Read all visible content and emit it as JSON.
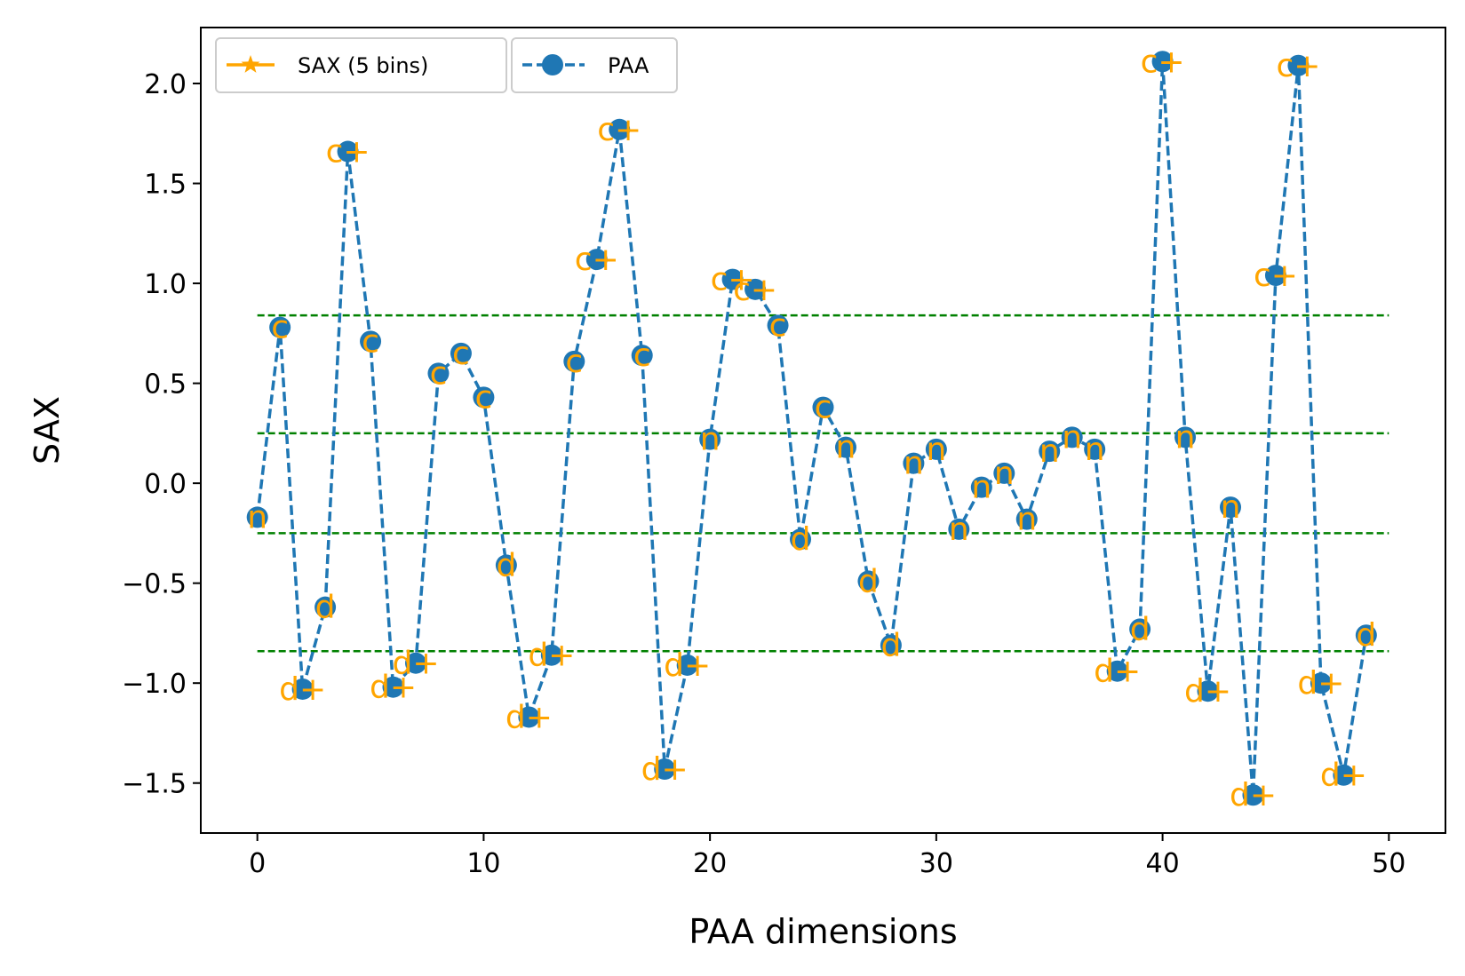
{
  "chart_data": {
    "type": "line",
    "xlabel": "PAA dimensions",
    "ylabel": "SAX",
    "xlim": [
      -2.5,
      52.5
    ],
    "ylim": [
      -1.75,
      2.28
    ],
    "xticks": [
      0,
      10,
      20,
      30,
      40,
      50
    ],
    "yticks": [
      -1.5,
      -1.0,
      -0.5,
      0.0,
      0.5,
      1.0,
      1.5,
      2.0
    ],
    "ytick_labels": [
      "−1.5",
      "−1.0",
      "−0.5",
      "0.0",
      "0.5",
      "1.0",
      "1.5",
      "2.0"
    ],
    "breakpoints": [
      -0.84,
      -0.25,
      0.25,
      0.84
    ],
    "breakpoint_color": "#008000",
    "legend": {
      "placement": "top-left",
      "entries": [
        {
          "name": "SAX (5 bins)",
          "color": "#ffa500",
          "marker": "star"
        },
        {
          "name": "PAA",
          "color": "#1f77b4",
          "marker": "circle"
        }
      ]
    },
    "series": [
      {
        "name": "PAA",
        "color": "#1f77b4",
        "x": [
          0,
          1,
          2,
          3,
          4,
          5,
          6,
          7,
          8,
          9,
          10,
          11,
          12,
          13,
          14,
          15,
          16,
          17,
          18,
          19,
          20,
          21,
          22,
          23,
          24,
          25,
          26,
          27,
          28,
          29,
          30,
          31,
          32,
          33,
          34,
          35,
          36,
          37,
          38,
          39,
          40,
          41,
          42,
          43,
          44,
          45,
          46,
          47,
          48,
          49
        ],
        "values": [
          -0.17,
          0.78,
          -1.03,
          -0.62,
          1.66,
          0.71,
          -1.02,
          -0.9,
          0.55,
          0.65,
          0.43,
          -0.41,
          -1.17,
          -0.86,
          0.61,
          1.12,
          1.77,
          0.64,
          -1.43,
          -0.91,
          0.22,
          1.02,
          0.97,
          0.79,
          -0.28,
          0.38,
          0.18,
          -0.49,
          -0.81,
          0.1,
          0.17,
          -0.23,
          -0.02,
          0.05,
          -0.18,
          0.16,
          0.23,
          0.17,
          -0.94,
          -0.73,
          2.11,
          0.23,
          -1.04,
          -0.12,
          -1.56,
          1.04,
          2.09,
          -1.0,
          -1.46,
          -0.76
        ]
      }
    ],
    "sax_symbols": [
      "n",
      "c",
      "d+",
      "d",
      "c+",
      "c",
      "d+",
      "d+",
      "c",
      "c",
      "c",
      "d",
      "d+",
      "d+",
      "c",
      "c+",
      "c+",
      "c",
      "d+",
      "d+",
      "n",
      "c+",
      "c+",
      "c",
      "d",
      "c",
      "n",
      "d",
      "d",
      "n",
      "n",
      "n",
      "n",
      "n",
      "n",
      "n",
      "n",
      "n",
      "d+",
      "d",
      "c+",
      "n",
      "d+",
      "n",
      "d+",
      "c+",
      "c+",
      "d+",
      "d+",
      "d"
    ]
  }
}
